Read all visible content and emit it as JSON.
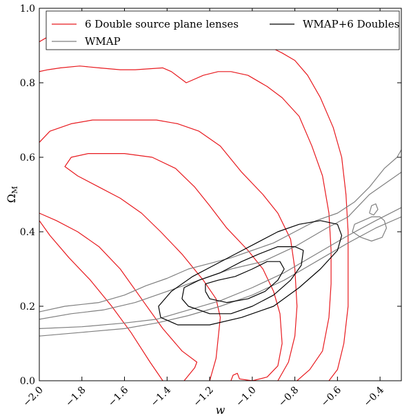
{
  "chart_data": {
    "type": "line",
    "title": "",
    "xlabel": "w",
    "ylabel": "Ω_M",
    "ylabel_main": "Ω",
    "ylabel_sub": "M",
    "xlim": [
      -2.0,
      -0.3
    ],
    "ylim": [
      0.0,
      1.0
    ],
    "x_ticks": [
      -2.0,
      -1.8,
      -1.6,
      -1.4,
      -1.2,
      -1.0,
      -0.8,
      -0.6,
      -0.4
    ],
    "x_tick_labels": [
      "−2.0",
      "−1.8",
      "−1.6",
      "−1.4",
      "−1.2",
      "−1.0",
      "−0.8",
      "−0.6",
      "−0.4"
    ],
    "y_ticks": [
      0.0,
      0.2,
      0.4,
      0.6,
      0.8,
      1.0
    ],
    "y_tick_labels": [
      "0.0",
      "0.2",
      "0.4",
      "0.6",
      "0.8",
      "1.0"
    ],
    "grid": false,
    "legend_position": "top",
    "series": [
      {
        "name": "6 Double source plane lenses",
        "color": "#e8191e",
        "contours": [
          [
            [
              -1.42,
              0.0
            ],
            [
              -1.48,
              0.05
            ],
            [
              -1.57,
              0.13
            ],
            [
              -1.66,
              0.2
            ],
            [
              -1.76,
              0.27
            ],
            [
              -1.86,
              0.33
            ],
            [
              -1.95,
              0.39
            ],
            [
              -2.0,
              0.43
            ]
          ],
          [
            [
              -1.32,
              0.0
            ],
            [
              -1.27,
              0.035
            ],
            [
              -1.26,
              0.05
            ],
            [
              -1.33,
              0.08
            ],
            [
              -1.42,
              0.14
            ],
            [
              -1.52,
              0.22
            ],
            [
              -1.62,
              0.3
            ],
            [
              -1.72,
              0.36
            ],
            [
              -1.82,
              0.4
            ],
            [
              -1.92,
              0.43
            ],
            [
              -2.0,
              0.45
            ]
          ],
          [
            [
              -1.2,
              0.0
            ],
            [
              -1.17,
              0.06
            ],
            [
              -1.15,
              0.17
            ],
            [
              -1.17,
              0.22
            ],
            [
              -1.23,
              0.27
            ],
            [
              -1.33,
              0.34
            ],
            [
              -1.43,
              0.4
            ],
            [
              -1.52,
              0.45
            ],
            [
              -1.62,
              0.49
            ],
            [
              -1.72,
              0.52
            ],
            [
              -1.82,
              0.55
            ],
            [
              -1.88,
              0.575
            ],
            [
              -1.85,
              0.6
            ],
            [
              -1.77,
              0.61
            ],
            [
              -1.6,
              0.61
            ],
            [
              -1.47,
              0.6
            ],
            [
              -1.36,
              0.57
            ],
            [
              -1.27,
              0.52
            ],
            [
              -1.2,
              0.47
            ],
            [
              -1.12,
              0.41
            ],
            [
              -1.02,
              0.35
            ],
            [
              -0.95,
              0.3
            ],
            [
              -0.9,
              0.24
            ],
            [
              -0.87,
              0.18
            ],
            [
              -0.86,
              0.1
            ],
            [
              -0.88,
              0.04
            ],
            [
              -0.93,
              0.01
            ],
            [
              -1.0,
              0.0
            ],
            [
              -1.06,
              0.005
            ],
            [
              -1.07,
              0.02
            ],
            [
              -1.09,
              0.015
            ],
            [
              -1.1,
              0.0
            ]
          ],
          [
            [
              -0.88,
              0.0
            ],
            [
              -0.83,
              0.05
            ],
            [
              -0.8,
              0.12
            ],
            [
              -0.79,
              0.2
            ],
            [
              -0.8,
              0.3
            ],
            [
              -0.82,
              0.38
            ],
            [
              -0.88,
              0.45
            ],
            [
              -0.95,
              0.5
            ],
            [
              -1.05,
              0.56
            ],
            [
              -1.15,
              0.63
            ],
            [
              -1.25,
              0.67
            ],
            [
              -1.35,
              0.69
            ],
            [
              -1.45,
              0.7
            ],
            [
              -1.55,
              0.7
            ],
            [
              -1.65,
              0.7
            ],
            [
              -1.75,
              0.7
            ],
            [
              -1.85,
              0.69
            ],
            [
              -1.95,
              0.67
            ],
            [
              -2.0,
              0.64
            ]
          ],
          [
            [
              -0.79,
              0.0
            ],
            [
              -0.73,
              0.03
            ],
            [
              -0.67,
              0.08
            ],
            [
              -0.64,
              0.17
            ],
            [
              -0.63,
              0.26
            ],
            [
              -0.63,
              0.35
            ],
            [
              -0.64,
              0.45
            ],
            [
              -0.67,
              0.55
            ],
            [
              -0.72,
              0.63
            ],
            [
              -0.78,
              0.71
            ],
            [
              -0.86,
              0.76
            ],
            [
              -0.93,
              0.79
            ],
            [
              -1.02,
              0.82
            ],
            [
              -1.1,
              0.83
            ],
            [
              -1.16,
              0.83
            ],
            [
              -1.23,
              0.82
            ],
            [
              -1.31,
              0.8
            ],
            [
              -1.38,
              0.83
            ],
            [
              -1.42,
              0.84
            ],
            [
              -1.55,
              0.835
            ],
            [
              -1.62,
              0.835
            ],
            [
              -1.72,
              0.84
            ],
            [
              -1.81,
              0.845
            ],
            [
              -1.9,
              0.84
            ],
            [
              -1.96,
              0.835
            ],
            [
              -2.0,
              0.83
            ]
          ],
          [
            [
              -0.64,
              0.0
            ],
            [
              -0.6,
              0.03
            ],
            [
              -0.57,
              0.1
            ],
            [
              -0.55,
              0.2
            ],
            [
              -0.55,
              0.3
            ],
            [
              -0.55,
              0.4
            ],
            [
              -0.56,
              0.5
            ],
            [
              -0.58,
              0.6
            ],
            [
              -0.62,
              0.68
            ],
            [
              -0.68,
              0.76
            ],
            [
              -0.74,
              0.82
            ],
            [
              -0.8,
              0.86
            ],
            [
              -0.86,
              0.88
            ],
            [
              -0.93,
              0.9
            ],
            [
              -1.0,
              0.92
            ],
            [
              -1.1,
              0.935
            ],
            [
              -1.2,
              0.94
            ],
            [
              -1.3,
              0.94
            ],
            [
              -1.4,
              0.935
            ],
            [
              -1.5,
              0.93
            ],
            [
              -1.6,
              0.93
            ],
            [
              -1.7,
              0.935
            ],
            [
              -1.8,
              0.935
            ],
            [
              -1.9,
              0.93
            ],
            [
              -1.97,
              0.92
            ],
            [
              -2.0,
              0.91
            ]
          ]
        ]
      },
      {
        "name": "WMAP",
        "color": "#7f7f7f",
        "contours": [
          [
            [
              -2.0,
              0.12
            ],
            [
              -1.8,
              0.13
            ],
            [
              -1.6,
              0.14
            ],
            [
              -1.45,
              0.155
            ],
            [
              -1.3,
              0.175
            ],
            [
              -1.15,
              0.2
            ],
            [
              -1.0,
              0.23
            ],
            [
              -0.85,
              0.27
            ],
            [
              -0.7,
              0.32
            ],
            [
              -0.55,
              0.37
            ],
            [
              -0.42,
              0.41
            ],
            [
              -0.3,
              0.44
            ]
          ],
          [
            [
              -2.0,
              0.14
            ],
            [
              -1.8,
              0.145
            ],
            [
              -1.6,
              0.155
            ],
            [
              -1.45,
              0.165
            ],
            [
              -1.3,
              0.19
            ],
            [
              -1.15,
              0.215
            ],
            [
              -1.0,
              0.25
            ],
            [
              -0.85,
              0.29
            ],
            [
              -0.7,
              0.34
            ],
            [
              -0.55,
              0.39
            ],
            [
              -0.42,
              0.43
            ],
            [
              -0.3,
              0.465
            ]
          ],
          [
            [
              -2.0,
              0.165
            ],
            [
              -1.85,
              0.18
            ],
            [
              -1.7,
              0.19
            ],
            [
              -1.55,
              0.21
            ],
            [
              -1.4,
              0.24
            ],
            [
              -1.25,
              0.27
            ],
            [
              -1.1,
              0.3
            ],
            [
              -0.95,
              0.32
            ],
            [
              -0.8,
              0.36
            ],
            [
              -0.65,
              0.41
            ],
            [
              -0.55,
              0.44
            ],
            [
              -0.5,
              0.47
            ],
            [
              -0.45,
              0.5
            ],
            [
              -0.35,
              0.54
            ],
            [
              -0.3,
              0.56
            ]
          ],
          [
            [
              -2.0,
              0.185
            ],
            [
              -1.88,
              0.2
            ],
            [
              -1.8,
              0.205
            ],
            [
              -1.72,
              0.21
            ],
            [
              -1.6,
              0.23
            ],
            [
              -1.5,
              0.255
            ],
            [
              -1.4,
              0.275
            ],
            [
              -1.3,
              0.3
            ],
            [
              -1.2,
              0.315
            ],
            [
              -1.1,
              0.33
            ],
            [
              -1.0,
              0.35
            ],
            [
              -0.9,
              0.37
            ],
            [
              -0.8,
              0.4
            ],
            [
              -0.7,
              0.43
            ],
            [
              -0.6,
              0.45
            ],
            [
              -0.52,
              0.48
            ],
            [
              -0.45,
              0.52
            ],
            [
              -0.38,
              0.57
            ],
            [
              -0.32,
              0.6
            ],
            [
              -0.3,
              0.62
            ]
          ],
          [
            [
              -0.52,
              0.42
            ],
            [
              -0.48,
              0.43
            ],
            [
              -0.44,
              0.44
            ],
            [
              -0.4,
              0.44
            ],
            [
              -0.38,
              0.43
            ],
            [
              -0.37,
              0.41
            ],
            [
              -0.39,
              0.385
            ],
            [
              -0.44,
              0.375
            ],
            [
              -0.49,
              0.385
            ],
            [
              -0.53,
              0.4
            ],
            [
              -0.52,
              0.42
            ]
          ],
          [
            [
              -0.45,
              0.45
            ],
            [
              -0.44,
              0.47
            ],
            [
              -0.42,
              0.475
            ],
            [
              -0.41,
              0.46
            ],
            [
              -0.43,
              0.445
            ],
            [
              -0.45,
              0.45
            ]
          ]
        ]
      },
      {
        "name": "WMAP+6 Doubles",
        "color": "#000000",
        "contours": [
          [
            [
              -1.43,
              0.17
            ],
            [
              -1.35,
              0.15
            ],
            [
              -1.2,
              0.15
            ],
            [
              -1.05,
              0.17
            ],
            [
              -0.9,
              0.2
            ],
            [
              -0.78,
              0.25
            ],
            [
              -0.68,
              0.3
            ],
            [
              -0.6,
              0.35
            ],
            [
              -0.58,
              0.39
            ],
            [
              -0.6,
              0.42
            ],
            [
              -0.68,
              0.43
            ],
            [
              -0.78,
              0.42
            ],
            [
              -0.88,
              0.4
            ],
            [
              -0.98,
              0.37
            ],
            [
              -1.08,
              0.34
            ],
            [
              -1.18,
              0.31
            ],
            [
              -1.28,
              0.28
            ],
            [
              -1.38,
              0.24
            ],
            [
              -1.44,
              0.2
            ],
            [
              -1.43,
              0.17
            ]
          ],
          [
            [
              -1.33,
              0.22
            ],
            [
              -1.3,
              0.2
            ],
            [
              -1.2,
              0.18
            ],
            [
              -1.1,
              0.18
            ],
            [
              -1.0,
              0.2
            ],
            [
              -0.9,
              0.23
            ],
            [
              -0.82,
              0.27
            ],
            [
              -0.77,
              0.31
            ],
            [
              -0.76,
              0.35
            ],
            [
              -0.8,
              0.36
            ],
            [
              -0.88,
              0.36
            ],
            [
              -0.97,
              0.34
            ],
            [
              -1.05,
              0.32
            ],
            [
              -1.15,
              0.29
            ],
            [
              -1.25,
              0.27
            ],
            [
              -1.32,
              0.25
            ],
            [
              -1.33,
              0.22
            ]
          ],
          [
            [
              -1.22,
              0.24
            ],
            [
              -1.2,
              0.22
            ],
            [
              -1.12,
              0.21
            ],
            [
              -1.02,
              0.22
            ],
            [
              -0.94,
              0.24
            ],
            [
              -0.88,
              0.27
            ],
            [
              -0.85,
              0.3
            ],
            [
              -0.87,
              0.32
            ],
            [
              -0.93,
              0.32
            ],
            [
              -1.0,
              0.3
            ],
            [
              -1.08,
              0.28
            ],
            [
              -1.16,
              0.27
            ],
            [
              -1.22,
              0.26
            ],
            [
              -1.22,
              0.24
            ]
          ]
        ]
      }
    ]
  }
}
